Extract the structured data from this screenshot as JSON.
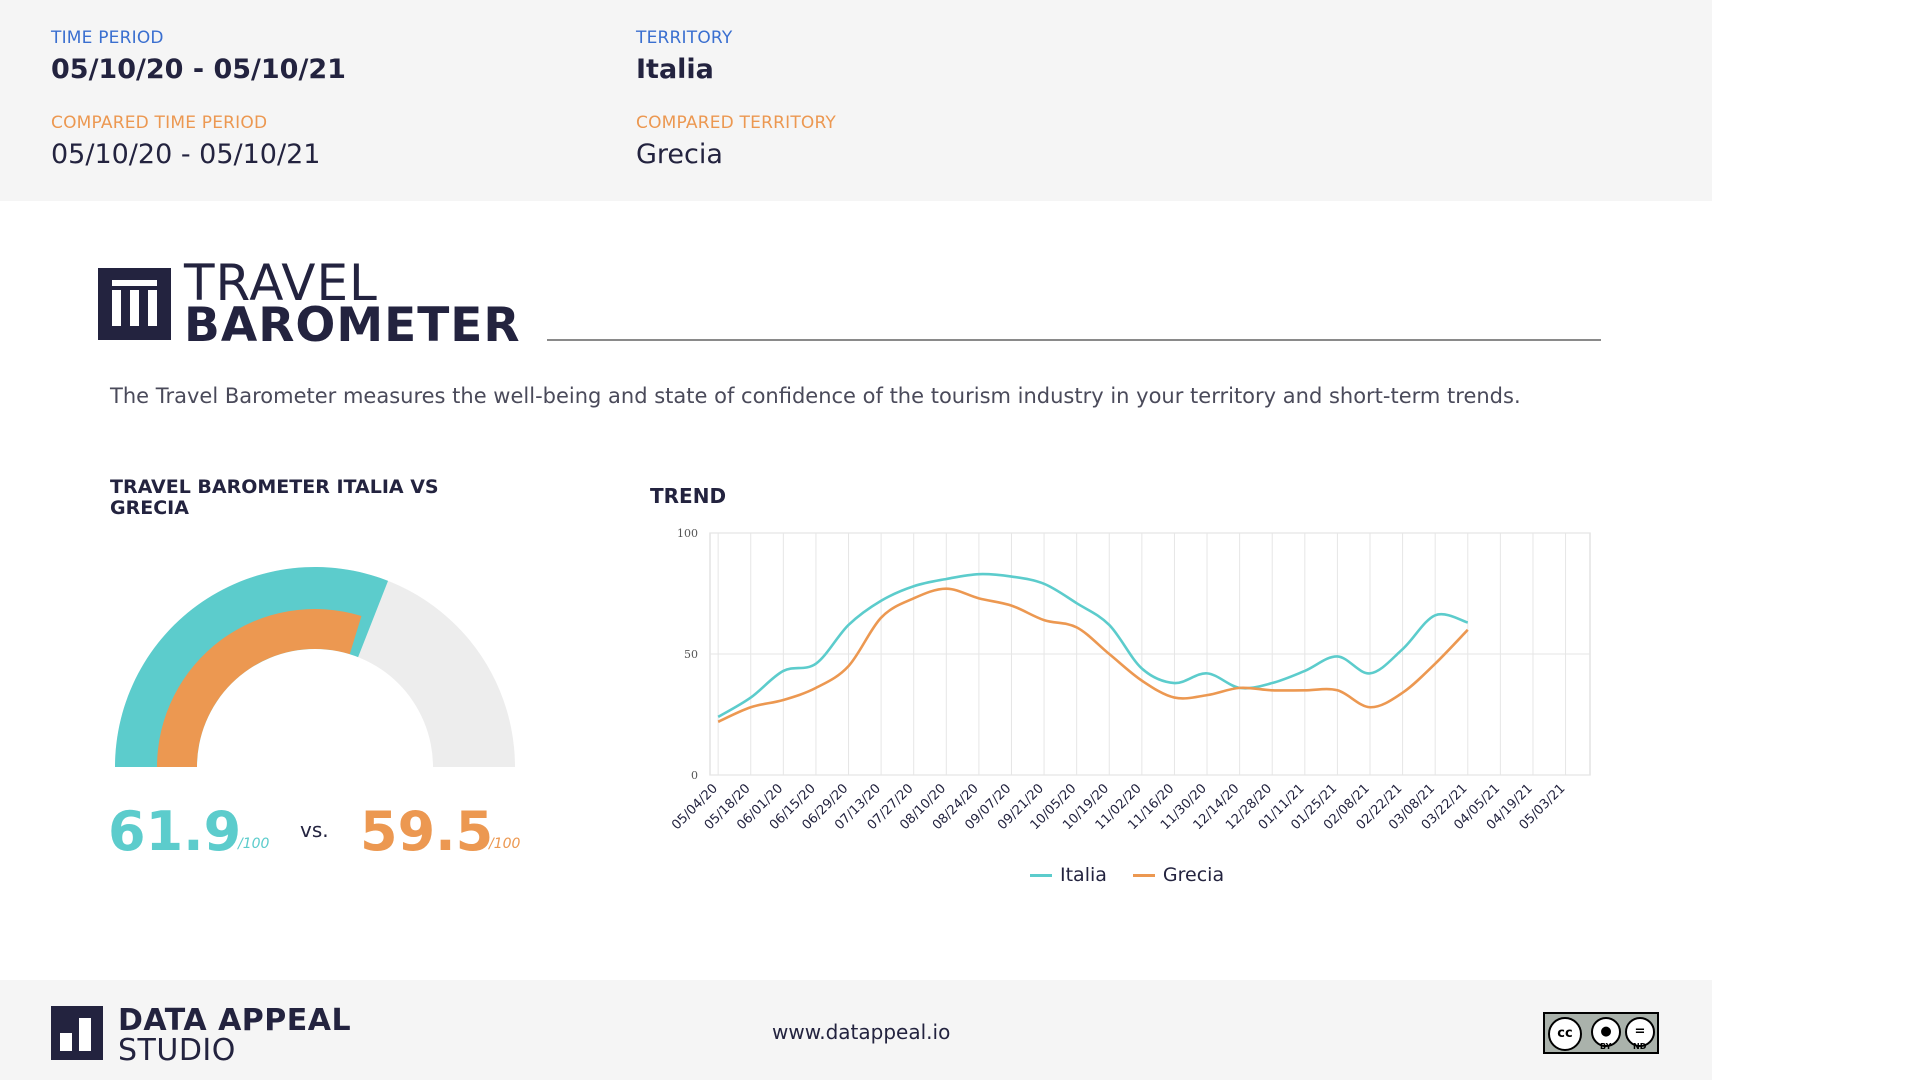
{
  "header": {
    "time_period_label": "TIME PERIOD",
    "time_period_value": "05/10/20 - 05/10/21",
    "territory_label": "TERRITORY",
    "territory_value": "Italia",
    "compared_time_period_label": "COMPARED TIME PERIOD",
    "compared_time_period_value": "05/10/20 - 05/10/21",
    "compared_territory_label": "COMPARED TERRITORY",
    "compared_territory_value": "Grecia"
  },
  "title": {
    "line1": "TRAVEL",
    "line2": "BAROMETER",
    "description": "The Travel Barometer measures the well-being and state of confidence of the tourism industry in your territory and short-term trends."
  },
  "gauge": {
    "title": "TRAVEL BAROMETER ITALIA VS GRECIA",
    "value_a": "61.9",
    "unit_a": "/100",
    "vs": "vs.",
    "value_b": "59.5",
    "unit_b": "/100"
  },
  "trend": {
    "title": "TREND"
  },
  "colors": {
    "italia": "#5ccccc",
    "grecia": "#ec9851",
    "navy": "#23233f",
    "gauge_track": "#ededed"
  },
  "chart_data": [
    {
      "type": "pie",
      "title": "TRAVEL BAROMETER ITALIA VS GRECIA",
      "series": [
        {
          "name": "Italia",
          "value": 61.9,
          "max": 100
        },
        {
          "name": "Grecia",
          "value": 59.5,
          "max": 100
        }
      ]
    },
    {
      "type": "line",
      "title": "TREND",
      "x": [
        "05/04/20",
        "05/18/20",
        "06/01/20",
        "06/15/20",
        "06/29/20",
        "07/13/20",
        "07/27/20",
        "08/10/20",
        "08/24/20",
        "09/07/20",
        "09/21/20",
        "10/05/20",
        "10/19/20",
        "11/02/20",
        "11/16/20",
        "11/30/20",
        "12/14/20",
        "12/28/20",
        "01/11/21",
        "01/25/21",
        "02/08/21",
        "02/22/21",
        "03/08/21",
        "03/22/21",
        "04/05/21",
        "04/19/21",
        "05/03/21"
      ],
      "ylim": [
        0,
        100
      ],
      "yticks": [
        0,
        50,
        100
      ],
      "grid": true,
      "legend": "bottom",
      "series": [
        {
          "name": "Italia",
          "values": [
            24,
            32,
            43,
            46,
            62,
            72,
            78,
            81,
            83,
            82,
            79,
            71,
            62,
            44,
            38,
            42,
            36,
            38,
            43,
            49,
            42,
            52,
            66,
            63,
            null,
            null,
            null
          ]
        },
        {
          "name": "Grecia",
          "values": [
            22,
            28,
            31,
            36,
            45,
            65,
            73,
            77,
            73,
            70,
            64,
            61,
            50,
            39,
            32,
            33,
            36,
            35,
            35,
            35,
            28,
            34,
            46,
            60,
            null,
            null,
            null
          ]
        }
      ]
    }
  ],
  "footer": {
    "brand_line1": "DATA APPEAL",
    "brand_line2": "STUDIO",
    "url": "www.datappeal.io",
    "license_cc": "cc",
    "license_by": "BY",
    "license_nd": "ND"
  }
}
